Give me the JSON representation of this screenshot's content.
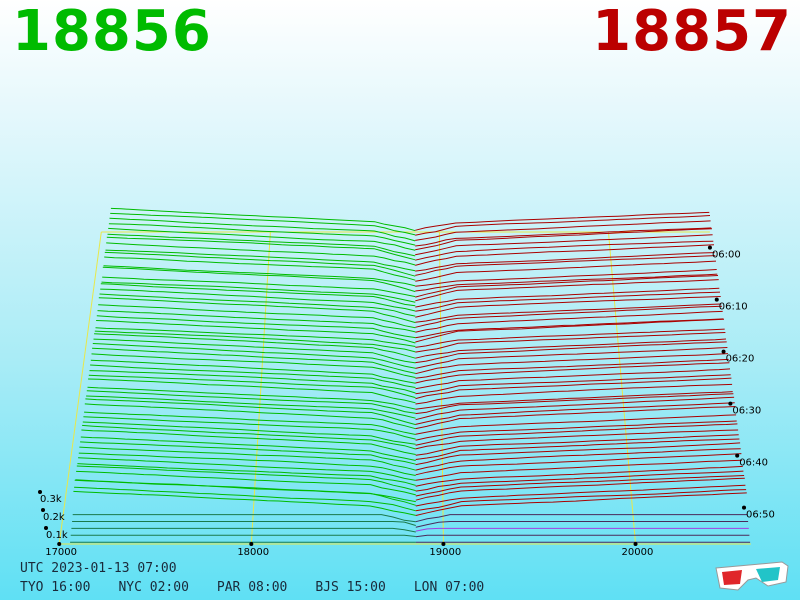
{
  "prices": {
    "bid": "18856",
    "ask": "18857",
    "bid_color": "#00bb00",
    "ask_color": "#bb0000"
  },
  "clock": {
    "utc": "UTC 2023-01-13 07:00",
    "zones": [
      {
        "name": "TYO",
        "time": "16:00"
      },
      {
        "name": "NYC",
        "time": "02:00"
      },
      {
        "name": "PAR",
        "time": "08:00"
      },
      {
        "name": "BJS",
        "time": "15:00"
      },
      {
        "name": "LON",
        "time": "07:00"
      }
    ]
  },
  "icons": {
    "glasses": "3d-glasses-icon"
  },
  "chart_data": {
    "type": "area",
    "x_ticks": [
      {
        "value": 17000,
        "label": "17000"
      },
      {
        "value": 18000,
        "label": "18000"
      },
      {
        "value": 19000,
        "label": "19000"
      },
      {
        "value": 20000,
        "label": "20000"
      }
    ],
    "depth_ticks": [
      {
        "value": 100,
        "label": "0.1k"
      },
      {
        "value": 200,
        "label": "0.2k"
      },
      {
        "value": 300,
        "label": "0.3k"
      }
    ],
    "time_ticks": [
      {
        "value": 0,
        "label": "06:00"
      },
      {
        "value": 10,
        "label": "06:10"
      },
      {
        "value": 20,
        "label": "06:20"
      },
      {
        "value": 30,
        "label": "06:30"
      },
      {
        "value": 40,
        "label": "06:40"
      },
      {
        "value": 50,
        "label": "06:50"
      }
    ],
    "mid_price": 18856.5,
    "xlim": [
      16900,
      20700
    ],
    "depth_max": 1300,
    "time_range": [
      0,
      60
    ],
    "series": [
      {
        "side": "bid",
        "color": "#00bb00"
      },
      {
        "side": "ask",
        "color": "#aa0000"
      }
    ]
  }
}
